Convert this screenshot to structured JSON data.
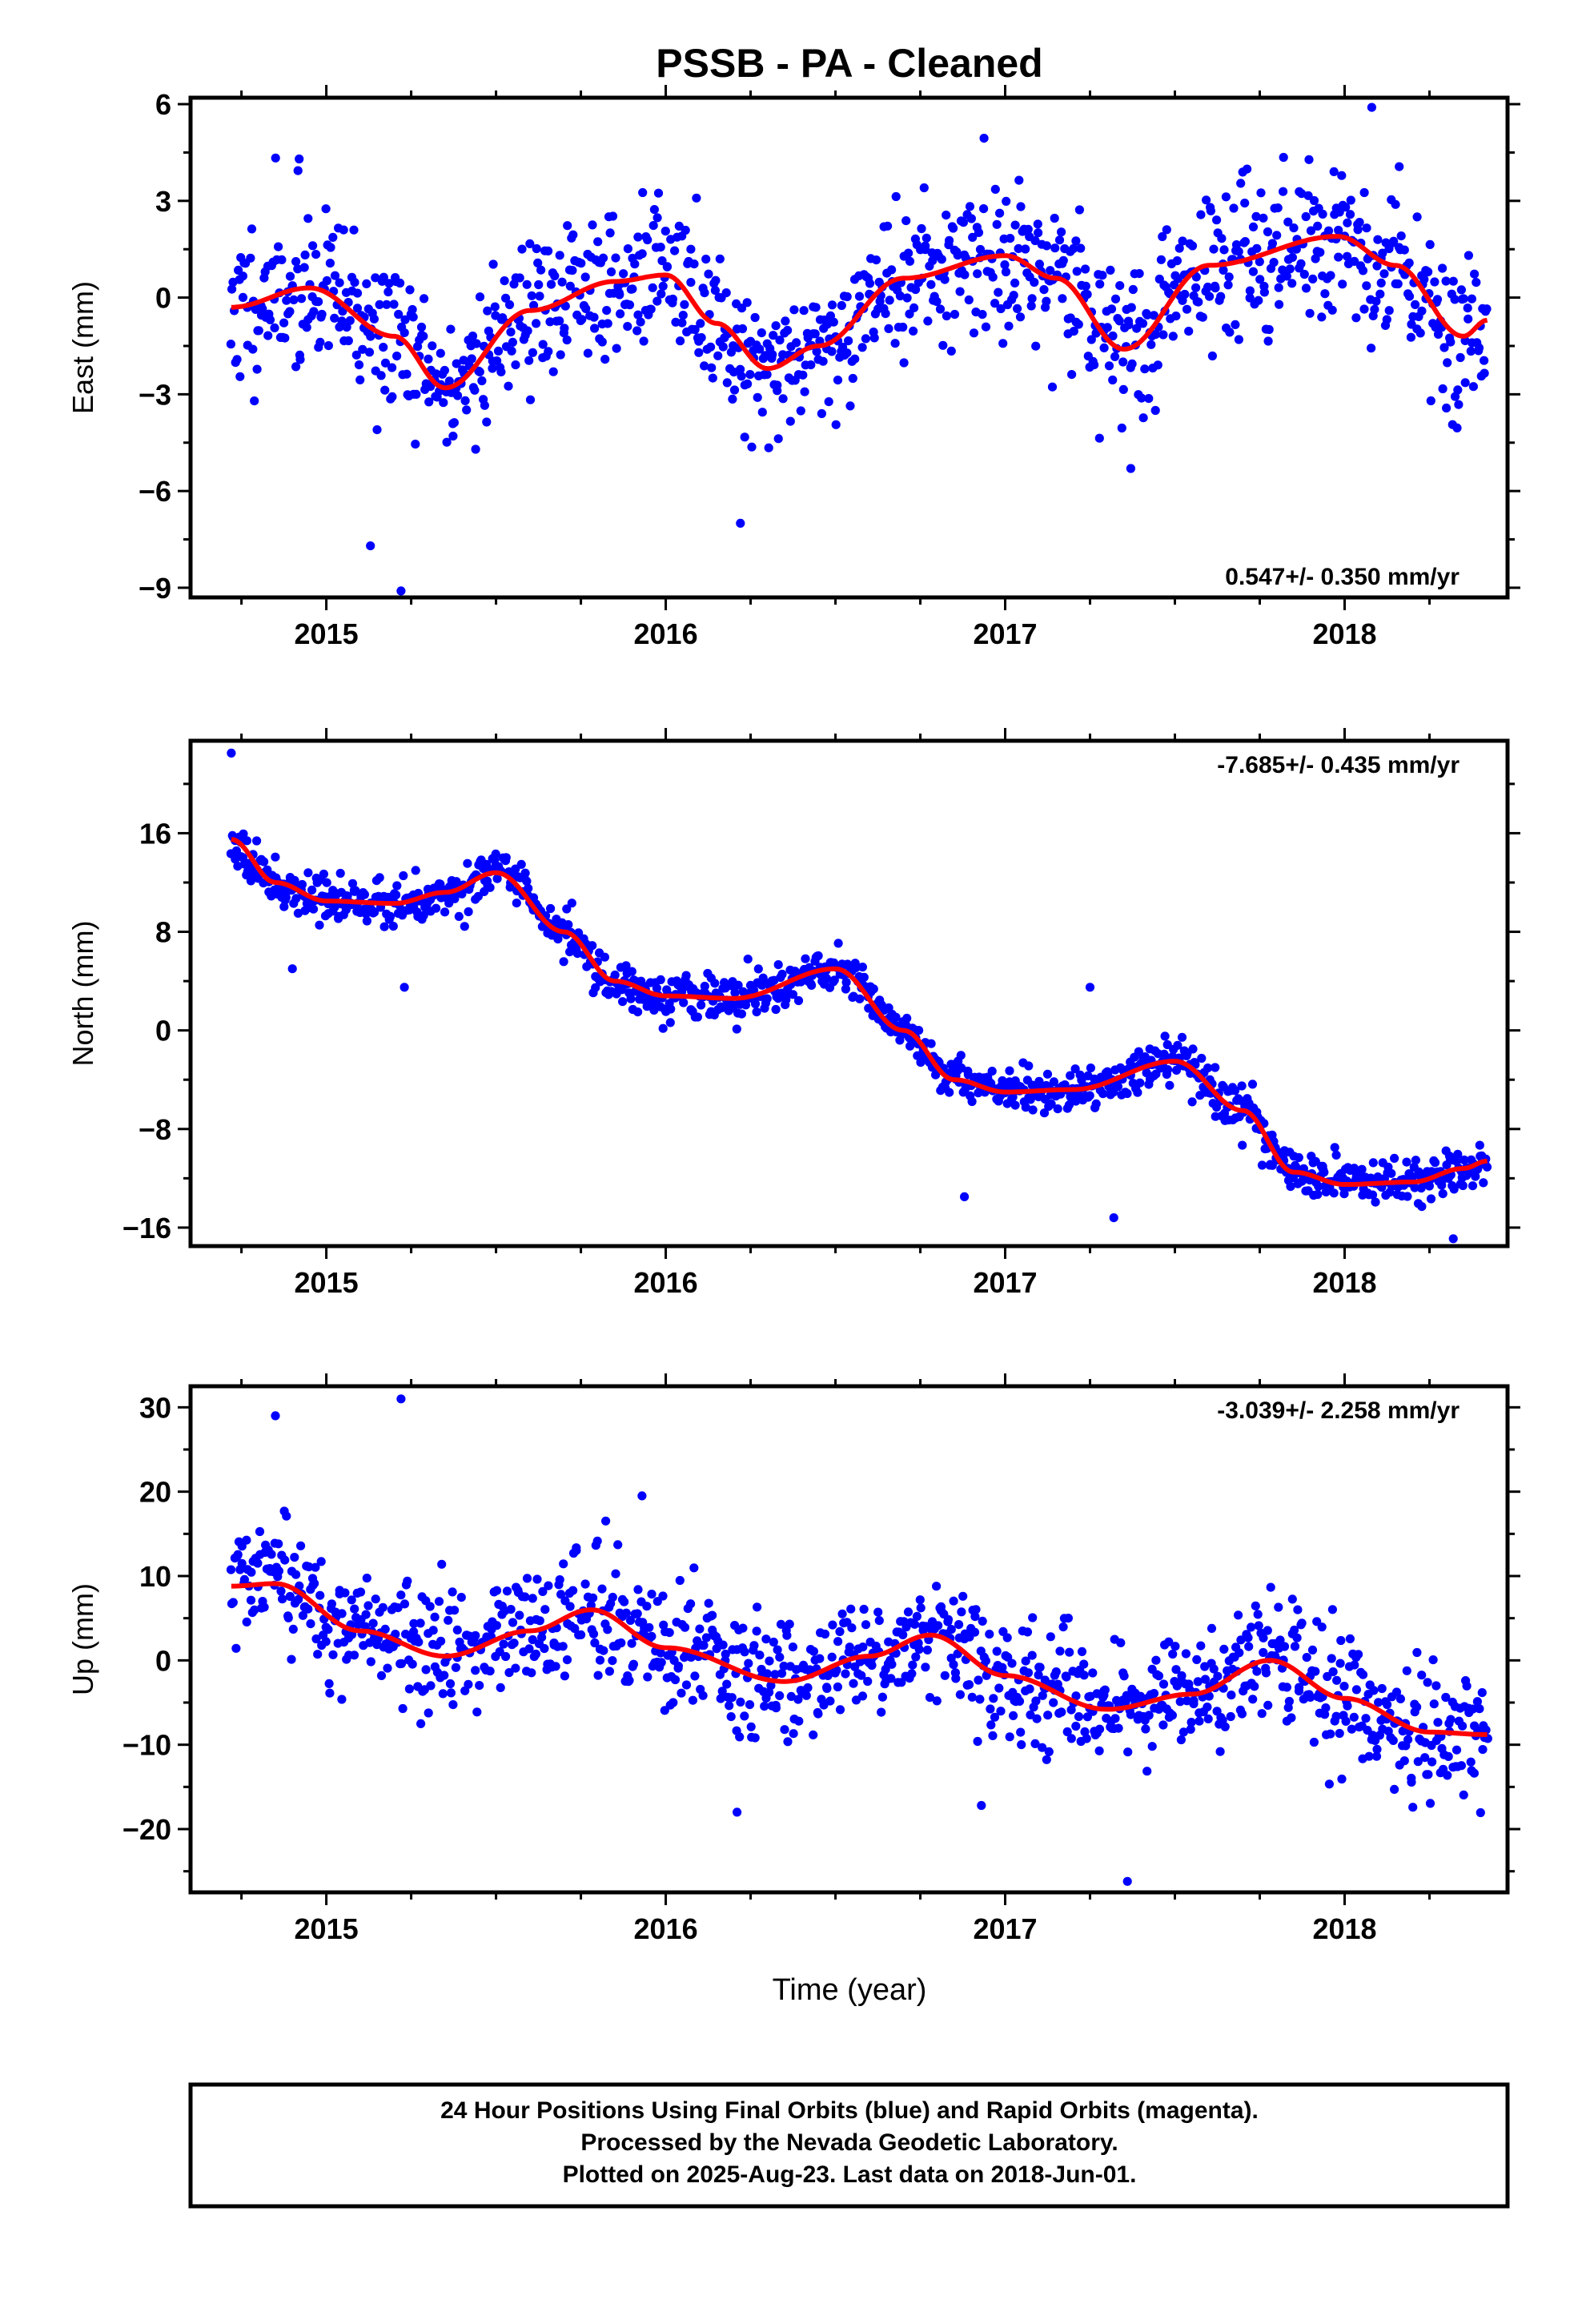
{
  "figure": {
    "title": "PSSB  - PA - Cleaned",
    "xlabel": "Time (year)",
    "footer_lines": [
      "24 Hour Positions Using Final Orbits (blue) and Rapid Orbits (magenta).",
      "Processed by the Nevada Geodetic Laboratory.",
      "Plotted on 2025-Aug-23. Last data on 2018-Jun-01."
    ],
    "colors": {
      "points": "#0000ff",
      "fit": "#ff0000",
      "axes": "#000000"
    }
  },
  "chart_data": [
    {
      "type": "scatter",
      "name": "east",
      "ylabel": "East (mm)",
      "rate_label": "0.547+/- 0.350 mm/yr",
      "rate_position": "bottom-right",
      "xlim": [
        2014.6,
        2018.48
      ],
      "ylim": [
        -9.3,
        6.2
      ],
      "xticks": [
        2015,
        2016,
        2017,
        2018
      ],
      "yticks": [
        -9,
        -6,
        -3,
        0,
        3,
        6
      ],
      "ytick_labels": [
        "−9",
        "−6",
        "−3",
        "0",
        "3",
        "6"
      ],
      "fit_curve": {
        "x": [
          2014.72,
          2014.95,
          2015.2,
          2015.35,
          2015.6,
          2015.85,
          2016.0,
          2016.15,
          2016.3,
          2016.45,
          2016.7,
          2017.0,
          2017.15,
          2017.35,
          2017.6,
          2017.98,
          2018.15,
          2018.35,
          2018.42
        ],
        "y": [
          -0.3,
          0.3,
          -1.2,
          -2.8,
          -0.4,
          0.5,
          0.7,
          -0.8,
          -2.2,
          -1.5,
          0.6,
          1.3,
          0.6,
          -1.6,
          1.0,
          1.9,
          1.0,
          -1.2,
          -0.7
        ]
      },
      "scatter_model": {
        "seed": 11,
        "n": 1120,
        "noise": 1.2,
        "outliers": [
          [
            2015.13,
            -7.7
          ],
          [
            2015.22,
            -9.1
          ],
          [
            2016.22,
            -7.0
          ],
          [
            2018.08,
            5.9
          ],
          [
            2017.37,
            -5.3
          ],
          [
            2014.92,
            4.3
          ]
        ]
      }
    },
    {
      "type": "scatter",
      "name": "north",
      "ylabel": "North (mm)",
      "rate_label": "-7.685+/- 0.435 mm/yr",
      "rate_position": "top-right",
      "xlim": [
        2014.6,
        2018.48
      ],
      "ylim": [
        -17.5,
        23.5
      ],
      "xticks": [
        2015,
        2016,
        2017,
        2018
      ],
      "yticks": [
        -16,
        -8,
        0,
        8,
        16
      ],
      "ytick_labels": [
        "−16",
        "−8",
        "0",
        "8",
        "16"
      ],
      "fit_curve": {
        "x": [
          2014.72,
          2014.85,
          2015.0,
          2015.2,
          2015.35,
          2015.5,
          2015.7,
          2015.85,
          2016.0,
          2016.2,
          2016.5,
          2016.7,
          2016.85,
          2017.0,
          2017.2,
          2017.5,
          2017.7,
          2017.85,
          2018.0,
          2018.2,
          2018.35,
          2018.42
        ],
        "y": [
          15.5,
          12.0,
          10.5,
          10.3,
          11.2,
          12.8,
          8.0,
          4.0,
          2.8,
          2.6,
          5.0,
          0.0,
          -4.0,
          -5.0,
          -4.8,
          -2.5,
          -6.5,
          -11.5,
          -12.5,
          -12.3,
          -11.2,
          -10.6
        ]
      },
      "scatter_model": {
        "seed": 23,
        "n": 1120,
        "noise": 0.9,
        "outliers": [
          [
            2014.72,
            22.5
          ],
          [
            2014.9,
            5.0
          ],
          [
            2015.23,
            3.5
          ],
          [
            2016.88,
            -13.5
          ],
          [
            2017.32,
            -15.2
          ],
          [
            2018.32,
            -16.9
          ],
          [
            2017.25,
            3.5
          ]
        ]
      }
    },
    {
      "type": "scatter",
      "name": "up",
      "ylabel": "Up (mm)",
      "rate_label": "-3.039+/- 2.258 mm/yr",
      "rate_position": "top-right",
      "xlim": [
        2014.6,
        2018.48
      ],
      "ylim": [
        -27.5,
        32.5
      ],
      "xticks": [
        2015,
        2016,
        2017,
        2018
      ],
      "yticks": [
        -20,
        -10,
        0,
        10,
        20,
        30
      ],
      "ytick_labels": [
        "−20",
        "−10",
        "0",
        "10",
        "20",
        "30"
      ],
      "fit_curve": {
        "x": [
          2014.72,
          2014.85,
          2015.1,
          2015.35,
          2015.6,
          2015.78,
          2016.0,
          2016.35,
          2016.6,
          2016.78,
          2017.0,
          2017.3,
          2017.55,
          2017.78,
          2018.0,
          2018.25,
          2018.42
        ],
        "y": [
          8.8,
          9.1,
          3.5,
          0.5,
          3.5,
          6.0,
          1.5,
          -2.5,
          0.5,
          3.0,
          -1.8,
          -5.8,
          -4.0,
          0.0,
          -4.5,
          -8.5,
          -8.8
        ]
      },
      "scatter_model": {
        "seed": 37,
        "n": 1120,
        "noise": 3.6,
        "outliers": [
          [
            2015.22,
            31.0
          ],
          [
            2014.85,
            29.0
          ],
          [
            2017.36,
            -26.2
          ],
          [
            2015.93,
            19.5
          ],
          [
            2016.21,
            -18.0
          ],
          [
            2016.93,
            -17.2
          ]
        ]
      }
    }
  ]
}
